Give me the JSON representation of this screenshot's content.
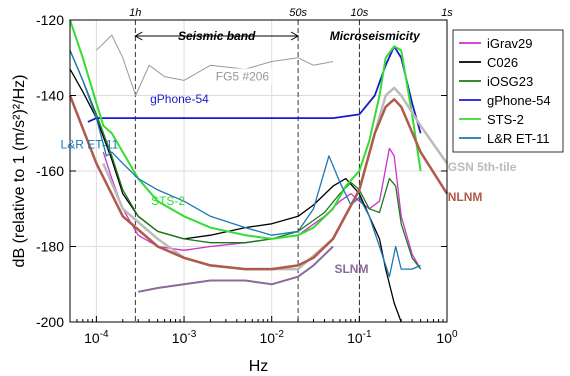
{
  "chart_data": {
    "type": "line",
    "xlabel": "Hz",
    "ylabel": "dB (relative to 1 (m/s²)²/Hz)",
    "x_scale": "log",
    "xlim": [
      5e-05,
      1
    ],
    "ylim": [
      -200,
      -120
    ],
    "x_ticks": [
      {
        "value": 0.0001,
        "base": "10",
        "exp": "-4"
      },
      {
        "value": 0.001,
        "base": "10",
        "exp": "-3"
      },
      {
        "value": 0.01,
        "base": "10",
        "exp": "-2"
      },
      {
        "value": 0.1,
        "base": "10",
        "exp": "-1"
      },
      {
        "value": 1,
        "base": "10",
        "exp": "0"
      }
    ],
    "y_ticks": [
      -200,
      -180,
      -160,
      -140,
      -120
    ],
    "grid": true,
    "period_labels": [
      {
        "label": "1h",
        "value": 0.000278
      },
      {
        "label": "50s",
        "value": 0.02
      },
      {
        "label": "10s",
        "value": 0.1
      },
      {
        "label": "1s",
        "value": 1
      }
    ],
    "seismic_band": {
      "label": "Seismic band",
      "from": 0.000278,
      "to": 0.02
    },
    "microseismicity": {
      "label": "Microseismicity",
      "value": 0.15
    },
    "legend_position": "top-right",
    "series": [
      {
        "name": "iGrav29",
        "color": "#cc33cc",
        "x": [
          0.00012,
          0.00015,
          0.0002,
          0.0003,
          0.0005,
          0.001,
          0.002,
          0.005,
          0.01,
          0.02,
          0.04,
          0.06,
          0.08,
          0.1,
          0.13,
          0.17,
          0.22,
          0.25,
          0.3,
          0.4,
          0.5
        ],
        "y": [
          -155,
          -162,
          -170,
          -177,
          -180,
          -181,
          -180,
          -179,
          -178,
          -177,
          -172,
          -168,
          -166,
          -168,
          -170,
          -168,
          -154,
          -156,
          -172,
          -182,
          -186
        ]
      },
      {
        "name": "C026",
        "color": "#000000",
        "x": [
          5e-05,
          7e-05,
          0.0001,
          0.00015,
          0.0002,
          0.0003,
          0.0005,
          0.001,
          0.002,
          0.005,
          0.01,
          0.02,
          0.03,
          0.05,
          0.07,
          0.1,
          0.13,
          0.17,
          0.2,
          0.25,
          0.3
        ],
        "y": [
          -133,
          -139,
          -146,
          -157,
          -166,
          -172,
          -176,
          -178,
          -177,
          -175,
          -174,
          -172,
          -169,
          -164,
          -162,
          -166,
          -172,
          -178,
          -186,
          -195,
          -200
        ]
      },
      {
        "name": "iOSG23",
        "color": "#1a7a1a",
        "x": [
          5e-05,
          7e-05,
          0.0001,
          0.00015,
          0.0002,
          0.0003,
          0.0005,
          0.001,
          0.002,
          0.005,
          0.01,
          0.02,
          0.04,
          0.06,
          0.08,
          0.1,
          0.13,
          0.17,
          0.22,
          0.26,
          0.3,
          0.4,
          0.5
        ],
        "y": [
          -128,
          -136,
          -145,
          -156,
          -165,
          -172,
          -176,
          -178,
          -179,
          -179,
          -178,
          -176,
          -171,
          -166,
          -163,
          -165,
          -170,
          -171,
          -162,
          -164,
          -174,
          -183,
          -186
        ]
      },
      {
        "name": "gPhone-54",
        "color": "#1a1acc",
        "x": [
          8e-05,
          0.0001,
          0.0002,
          0.0005,
          0.001,
          0.002,
          0.005,
          0.01,
          0.02,
          0.05,
          0.1,
          0.15,
          0.2,
          0.25,
          0.3,
          0.4,
          0.5
        ],
        "y": [
          -147,
          -146,
          -146,
          -146,
          -146,
          -146,
          -146,
          -146,
          -146,
          -146,
          -145,
          -140,
          -132,
          -127,
          -130,
          -142,
          -150
        ]
      },
      {
        "name": "STS-2",
        "color": "#33dd33",
        "x": [
          5e-05,
          7e-05,
          0.0001,
          0.00012,
          0.00015,
          0.0002,
          0.0003,
          0.0005,
          0.001,
          0.002,
          0.005,
          0.01,
          0.02,
          0.03,
          0.05,
          0.07,
          0.1,
          0.13,
          0.17,
          0.2,
          0.25,
          0.3,
          0.4,
          0.5
        ],
        "y": [
          -120,
          -130,
          -142,
          -148,
          -150,
          -155,
          -162,
          -168,
          -172,
          -175,
          -177,
          -178,
          -177,
          -175,
          -170,
          -164,
          -160,
          -152,
          -140,
          -130,
          -127,
          -128,
          -145,
          -160
        ]
      },
      {
        "name": "L&R ET-11",
        "color": "#1f77b4",
        "x": [
          5e-05,
          7e-05,
          0.0001,
          0.00013,
          0.00015,
          0.0002,
          0.0003,
          0.0005,
          0.001,
          0.002,
          0.005,
          0.01,
          0.02,
          0.03,
          0.045,
          0.06,
          0.08,
          0.1,
          0.13,
          0.17,
          0.22,
          0.26,
          0.3,
          0.4,
          0.5
        ],
        "y": [
          -128,
          -136,
          -146,
          -156,
          -155,
          -158,
          -162,
          -165,
          -168,
          -172,
          -175,
          -177,
          -176,
          -170,
          -156,
          -163,
          -169,
          -167,
          -172,
          -180,
          -188,
          -180,
          -186,
          -186,
          -185
        ]
      },
      {
        "name": "FG5 #206",
        "color": "#999999",
        "x": [
          0.0001,
          0.00015,
          0.0002,
          0.00028,
          0.0004,
          0.0006,
          0.001,
          0.002,
          0.005,
          0.01,
          0.02,
          0.03,
          0.05
        ],
        "y": [
          -128,
          -124,
          -130,
          -140,
          -132,
          -135,
          -136,
          -132,
          -133,
          -131,
          -130,
          -132,
          -131
        ]
      },
      {
        "name": "GSN 5th-tile",
        "color": "#bbbbbb",
        "x": [
          0.00012,
          0.0002,
          0.0005,
          0.001,
          0.002,
          0.005,
          0.01,
          0.02,
          0.05,
          0.1,
          0.15,
          0.2,
          0.25,
          0.3,
          0.5,
          1
        ],
        "y": [
          -158,
          -170,
          -178,
          -183,
          -185,
          -186,
          -186,
          -186,
          -178,
          -165,
          -150,
          -140,
          -138,
          -140,
          -148,
          -158
        ]
      },
      {
        "name": "NLNM",
        "color": "#b05a4a",
        "x": [
          5e-05,
          0.0001,
          0.0002,
          0.0005,
          0.001,
          0.002,
          0.005,
          0.01,
          0.02,
          0.03,
          0.05,
          0.1,
          0.15,
          0.2,
          0.25,
          0.3,
          0.5,
          1
        ],
        "y": [
          -140,
          -158,
          -172,
          -180,
          -183,
          -185,
          -186,
          -186,
          -185,
          -183,
          -178,
          -165,
          -150,
          -143,
          -141,
          -143,
          -155,
          -166
        ]
      },
      {
        "name": "SLNM",
        "color": "#8a6a9a",
        "x": [
          0.0003,
          0.0005,
          0.001,
          0.002,
          0.005,
          0.01,
          0.02,
          0.03,
          0.05
        ],
        "y": [
          -192,
          -191,
          -190,
          -189,
          -189,
          -190,
          -188,
          -185,
          -180
        ]
      }
    ],
    "legend_series": [
      "iGrav29",
      "C026",
      "iOSG23",
      "gPhone-54",
      "STS-2",
      "L&R ET-11"
    ],
    "annotations": [
      {
        "text": "FG5 #206",
        "series": "FG5 #206",
        "x": 0.0023,
        "y": -136
      },
      {
        "text": "gPhone-54",
        "series": "gPhone-54",
        "x": 0.00041,
        "y": -142
      },
      {
        "text": "L&R ET-11",
        "series": "L&R ET-11",
        "x": 3.9e-05,
        "y": -154
      },
      {
        "text": "STS-2",
        "series": "STS-2",
        "x": 0.00042,
        "y": -169
      },
      {
        "text": "GSN 5th-tile",
        "series": "GSN 5th-tile",
        "x": 1.02,
        "y": -160
      },
      {
        "text": "NLNM",
        "series": "NLNM",
        "x": 1.02,
        "y": -168
      },
      {
        "text": "SLNM",
        "series": "SLNM",
        "x": 0.052,
        "y": -187
      }
    ]
  }
}
